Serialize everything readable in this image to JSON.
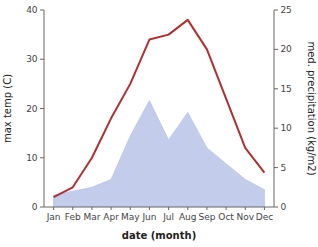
{
  "chart_data": {
    "type": "line",
    "xlabel": "date (month)",
    "ylabel": "max temp (C)",
    "y2label": "med. precipitation (kg/m2)",
    "categories": [
      "Jan",
      "Feb",
      "Mar",
      "Apr",
      "May",
      "Jun",
      "Jul",
      "Aug",
      "Sep",
      "Oct",
      "Nov",
      "Dec"
    ],
    "series": [
      {
        "type": "area",
        "axis": "y2",
        "color": "#b8c4e8",
        "values": [
          1.5,
          2.0,
          2.5,
          3.5,
          9.0,
          13.5,
          8.5,
          12.0,
          7.5,
          5.5,
          3.5,
          2.2
        ]
      },
      {
        "type": "line",
        "color": "#b03030",
        "values": [
          2,
          4,
          10,
          18,
          25,
          34,
          35,
          38,
          32,
          22,
          12,
          7
        ]
      }
    ],
    "ylim": [
      0,
      40
    ],
    "yticks": [
      0,
      10,
      20,
      30,
      40
    ],
    "y2lim": [
      0,
      25
    ],
    "y2ticks": [
      0,
      5,
      10,
      15,
      20,
      25
    ],
    "grid": false
  }
}
